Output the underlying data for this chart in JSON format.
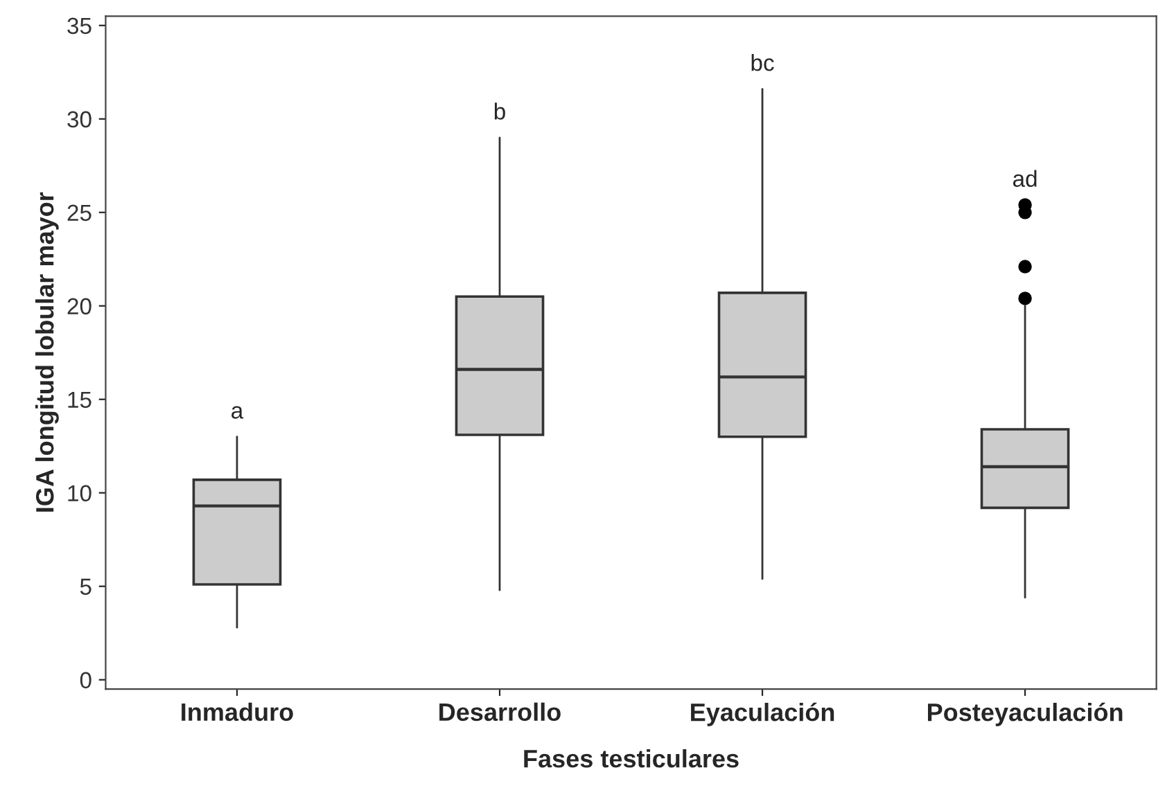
{
  "chart_data": {
    "type": "box",
    "xlabel": "Fases testiculares",
    "ylabel": "IGA longitud lobular mayor",
    "categories": [
      "Inmaduro",
      "Desarrollo",
      "Eyaculación",
      "Posteyaculación"
    ],
    "boxes": [
      {
        "low": 2.8,
        "q1": 5.1,
        "median": 9.3,
        "q3": 10.7,
        "high": 13.0
      },
      {
        "low": 4.8,
        "q1": 13.1,
        "median": 16.6,
        "q3": 20.5,
        "high": 29.0
      },
      {
        "low": 5.4,
        "q1": 13.0,
        "median": 16.2,
        "q3": 20.7,
        "high": 31.6
      },
      {
        "low": 4.4,
        "q1": 9.2,
        "median": 11.4,
        "q3": 13.4,
        "high": 20.0,
        "outliers": [
          20.4,
          22.1,
          25.0,
          25.4
        ]
      }
    ],
    "color": "#cccccc",
    "ylim": [
      -0.5,
      35.5
    ],
    "yticks": [
      0,
      5,
      10,
      15,
      20,
      25,
      30,
      35
    ],
    "grid": false,
    "legend": false,
    "annotations": [
      "a",
      "b",
      "bc",
      "ad"
    ]
  }
}
